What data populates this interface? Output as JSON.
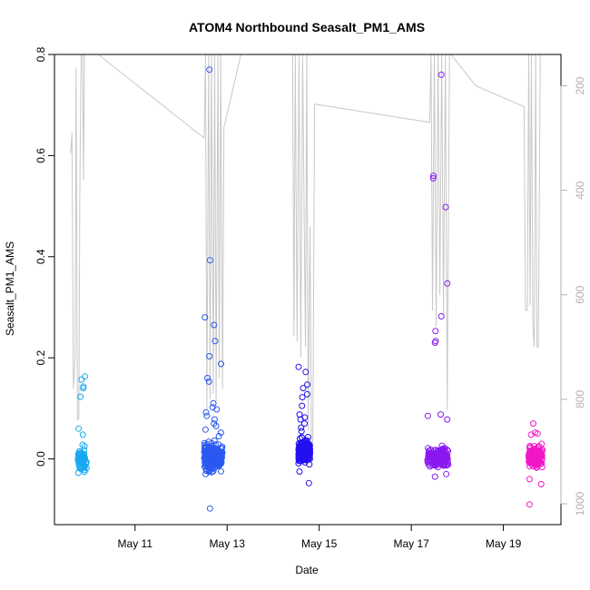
{
  "chart_data": {
    "type": "scatter",
    "title": "ATOM4 Northbound Seasalt_PM1_AMS",
    "xlabel": "Date",
    "ylabel": "Seasalt_PM1_AMS",
    "x_ticks": [
      {
        "day": 11,
        "label": "May 11"
      },
      {
        "day": 13,
        "label": "May 13"
      },
      {
        "day": 15,
        "label": "May 15"
      },
      {
        "day": 17,
        "label": "May 17"
      },
      {
        "day": 19,
        "label": "May 19"
      }
    ],
    "y_ticks": [
      "0.0",
      "0.2",
      "0.4",
      "0.6",
      "0.8"
    ],
    "y_right_ticks": [
      "200",
      "400",
      "600",
      "800",
      "1000"
    ],
    "xlim": [
      9.25,
      20.25
    ],
    "ylim": [
      -0.13,
      0.8
    ],
    "y_right_lim": [
      1040,
      140
    ],
    "y_right_reversed": true,
    "grid": false,
    "colors": {
      "flight1": "#18a8f0",
      "flight2": "#2a58f0",
      "flight3": "#2410f0",
      "flight4": "#8a18f0",
      "flight5": "#f018c8",
      "pressure_line": "#c8c8c8"
    },
    "series": [
      {
        "x_range": [
          9.75,
          9.95
        ],
        "outliers": [
          0.163,
          0.157,
          0.143,
          0.14,
          0.123,
          0.06,
          0.048,
          0.028,
          0.025
        ],
        "bulk_range": [
          -0.035,
          0.025
        ],
        "bulk_count": 70
      },
      {
        "x_range": [
          12.5,
          12.9
        ],
        "outliers": [
          0.77,
          0.393,
          0.28,
          0.265,
          0.233,
          0.203,
          0.188,
          0.16,
          0.153,
          0.11,
          0.102,
          0.098,
          0.092,
          0.085,
          0.078,
          0.07,
          0.065,
          0.058,
          0.052,
          0.045,
          -0.098
        ],
        "bulk_range": [
          -0.035,
          0.04
        ],
        "bulk_count": 220
      },
      {
        "x_range": [
          14.55,
          14.8
        ],
        "outliers": [
          0.182,
          0.172,
          0.147,
          0.14,
          0.128,
          0.122,
          0.105,
          0.088,
          0.082,
          0.078,
          0.07,
          0.062,
          0.055,
          -0.025,
          -0.048
        ],
        "bulk_range": [
          -0.02,
          0.05
        ],
        "bulk_count": 200
      },
      {
        "x_range": [
          17.35,
          17.8
        ],
        "outliers": [
          0.76,
          0.56,
          0.555,
          0.498,
          0.347,
          0.282,
          0.253,
          0.233,
          0.23,
          0.088,
          0.085,
          0.078,
          -0.03,
          -0.035
        ],
        "bulk_range": [
          -0.025,
          0.03
        ],
        "bulk_count": 150
      },
      {
        "x_range": [
          19.55,
          19.85
        ],
        "outliers": [
          0.07,
          0.052,
          0.05,
          0.048,
          -0.04,
          -0.05,
          -0.09
        ],
        "bulk_range": [
          -0.03,
          0.035
        ],
        "bulk_count": 110
      }
    ],
    "pressure_line": [
      [
        9.6,
        330
      ],
      [
        9.63,
        290
      ],
      [
        9.66,
        780
      ],
      [
        9.7,
        720
      ],
      [
        9.72,
        165
      ],
      [
        9.75,
        840
      ],
      [
        9.78,
        835
      ],
      [
        9.8,
        410
      ],
      [
        9.83,
        140
      ],
      [
        9.86,
        140
      ],
      [
        9.88,
        380
      ],
      [
        9.9,
        140
      ],
      [
        10.0,
        140
      ],
      [
        10.2,
        140
      ],
      [
        12.5,
        300
      ],
      [
        12.53,
        140
      ],
      [
        12.56,
        820
      ],
      [
        12.6,
        140
      ],
      [
        12.63,
        800
      ],
      [
        12.66,
        140
      ],
      [
        12.7,
        790
      ],
      [
        12.73,
        140
      ],
      [
        12.76,
        810
      ],
      [
        12.8,
        140
      ],
      [
        12.83,
        760
      ],
      [
        12.86,
        140
      ],
      [
        12.9,
        780
      ],
      [
        12.93,
        280
      ],
      [
        13.3,
        140
      ],
      [
        14.42,
        140
      ],
      [
        14.45,
        680
      ],
      [
        14.48,
        140
      ],
      [
        14.52,
        690
      ],
      [
        14.56,
        140
      ],
      [
        14.6,
        720
      ],
      [
        14.64,
        140
      ],
      [
        14.7,
        700
      ],
      [
        14.73,
        140
      ],
      [
        14.76,
        860
      ],
      [
        14.8,
        470
      ],
      [
        14.83,
        880
      ],
      [
        14.86,
        890
      ],
      [
        14.9,
        235
      ],
      [
        17.4,
        270
      ],
      [
        17.43,
        140
      ],
      [
        17.46,
        630
      ],
      [
        17.5,
        140
      ],
      [
        17.54,
        660
      ],
      [
        17.58,
        140
      ],
      [
        17.62,
        600
      ],
      [
        17.66,
        140
      ],
      [
        17.7,
        640
      ],
      [
        17.74,
        140
      ],
      [
        17.78,
        820
      ],
      [
        17.83,
        140
      ],
      [
        17.86,
        140
      ],
      [
        18.4,
        200
      ],
      [
        19.45,
        240
      ],
      [
        19.48,
        630
      ],
      [
        19.52,
        630
      ],
      [
        19.55,
        140
      ],
      [
        19.58,
        620
      ],
      [
        19.61,
        140
      ],
      [
        19.64,
        660
      ],
      [
        19.67,
        700
      ],
      [
        19.7,
        140
      ],
      [
        19.73,
        700
      ],
      [
        19.76,
        700
      ],
      [
        19.8,
        140
      ]
    ]
  }
}
